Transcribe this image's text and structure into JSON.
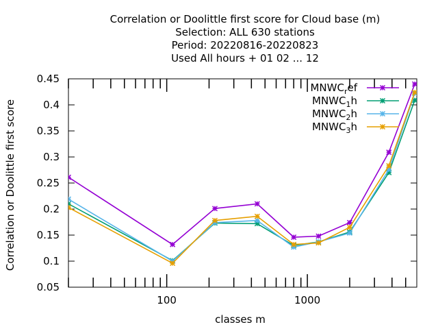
{
  "title_lines": [
    "Correlation or Doolittle first score  for Cloud base (m)",
    "Selection: ALL    630 stations",
    "Period: 20220816-20220823",
    "Used  All hours + 01 02 ... 12"
  ],
  "colors": {
    "MNWC_ref": "#9400d3",
    "MNWC_1h": "#009e73",
    "MNWC_2h": "#56b4e9",
    "MNWC_3h": "#e69f00"
  },
  "chart_data": {
    "type": "line",
    "title": "Correlation or Doolittle first score  for Cloud base (m)",
    "xlabel": "classes m",
    "ylabel": "Correlation or Doolittle first score",
    "xscale": "log",
    "xlim": [
      20,
      6000
    ],
    "ylim": [
      0.05,
      0.45
    ],
    "xticks": [
      100,
      1000
    ],
    "xtick_labels": [
      "100",
      "1000"
    ],
    "yticks": [
      0.05,
      0.1,
      0.15,
      0.2,
      0.25,
      0.3,
      0.35,
      0.4,
      0.45
    ],
    "ytick_labels": [
      "0.05",
      "0.1",
      "0.15",
      "0.2",
      "0.25",
      "0.3",
      "0.35",
      "0.4",
      "0.45"
    ],
    "grid": false,
    "legend_position": "top-right",
    "x": [
      20,
      110,
      220,
      440,
      800,
      1200,
      2000,
      3800,
      5800
    ],
    "series": [
      {
        "name": "MNWC_ref",
        "label_main": "MNWC",
        "label_sub": "r",
        "label_tail": "ef",
        "marker": "star",
        "values": [
          0.261,
          0.132,
          0.201,
          0.21,
          0.146,
          0.148,
          0.174,
          0.309,
          0.44
        ]
      },
      {
        "name": "MNWC_1h",
        "label_main": "MNWC",
        "label_sub": "1",
        "label_tail": "h",
        "marker": "star",
        "values": [
          0.21,
          0.101,
          0.173,
          0.172,
          0.13,
          0.137,
          0.156,
          0.27,
          0.409
        ]
      },
      {
        "name": "MNWC_2h",
        "label_main": "MNWC",
        "label_sub": "2",
        "label_tail": "h",
        "marker": "star",
        "values": [
          0.219,
          0.1,
          0.174,
          0.178,
          0.127,
          0.137,
          0.154,
          0.276,
          0.422
        ]
      },
      {
        "name": "MNWC_3h",
        "label_main": "MNWC",
        "label_sub": "3",
        "label_tail": "h",
        "marker": "star",
        "values": [
          0.203,
          0.096,
          0.178,
          0.186,
          0.132,
          0.135,
          0.165,
          0.283,
          0.424
        ]
      }
    ]
  }
}
